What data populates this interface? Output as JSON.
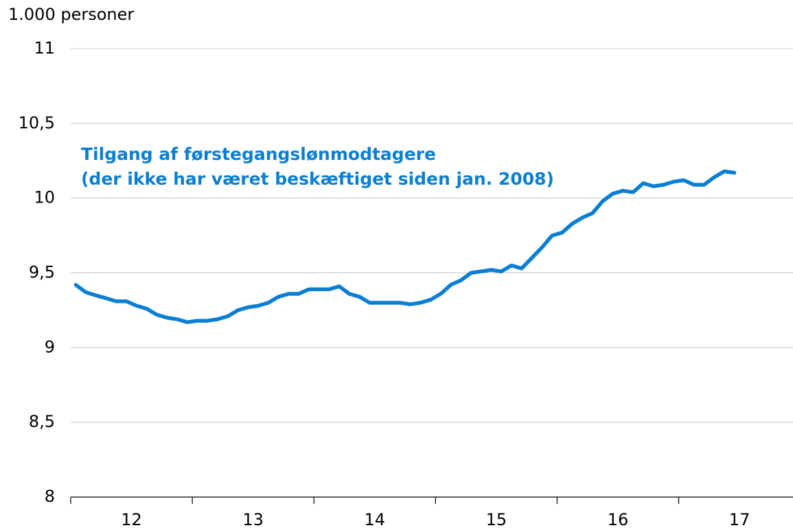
{
  "chart_data": {
    "type": "line",
    "unit_label": "1.000 personer",
    "annotation": [
      "Tilgang af førstegangslønmodtagere",
      "(der ikke har været beskæftiget siden jan. 2008)"
    ],
    "xlim": [
      2012,
      2017.94
    ],
    "xticks": [
      {
        "value": 2012.5,
        "label": "12"
      },
      {
        "value": 2013.5,
        "label": "13"
      },
      {
        "value": 2014.5,
        "label": "14"
      },
      {
        "value": 2015.5,
        "label": "15"
      },
      {
        "value": 2016.5,
        "label": "16"
      },
      {
        "value": 2017.5,
        "label": "17"
      }
    ],
    "ylim": [
      8,
      11
    ],
    "yticks": [
      8,
      {
        "value": 8.5,
        "label": "8,5"
      },
      9,
      {
        "value": 9.5,
        "label": "9,5"
      },
      10,
      {
        "value": 10.5,
        "label": "10,5"
      },
      11
    ],
    "grid": true,
    "x": [
      2012.042,
      2012.125,
      2012.208,
      2012.292,
      2012.375,
      2012.458,
      2012.542,
      2012.625,
      2012.708,
      2012.792,
      2012.875,
      2012.958,
      2013.042,
      2013.125,
      2013.208,
      2013.292,
      2013.375,
      2013.458,
      2013.542,
      2013.625,
      2013.708,
      2013.792,
      2013.875,
      2013.958,
      2014.042,
      2014.125,
      2014.208,
      2014.292,
      2014.375,
      2014.458,
      2014.542,
      2014.625,
      2014.708,
      2014.792,
      2014.875,
      2014.958,
      2015.042,
      2015.125,
      2015.208,
      2015.292,
      2015.375,
      2015.458,
      2015.542,
      2015.625,
      2015.708,
      2015.792,
      2015.875,
      2015.958,
      2016.042,
      2016.125,
      2016.208,
      2016.292,
      2016.375,
      2016.458,
      2016.542,
      2016.625,
      2016.708,
      2016.792,
      2016.875,
      2016.958,
      2017.042,
      2017.125,
      2017.208,
      2017.292,
      2017.375,
      2017.458
    ],
    "series": [
      {
        "color": "#0a7fd2",
        "values": [
          9.42,
          9.37,
          9.35,
          9.33,
          9.31,
          9.31,
          9.28,
          9.26,
          9.22,
          9.2,
          9.19,
          9.17,
          9.18,
          9.18,
          9.19,
          9.21,
          9.25,
          9.27,
          9.28,
          9.3,
          9.34,
          9.36,
          9.36,
          9.39,
          9.39,
          9.39,
          9.41,
          9.36,
          9.34,
          9.3,
          9.3,
          9.3,
          9.3,
          9.29,
          9.3,
          9.32,
          9.36,
          9.42,
          9.45,
          9.5,
          9.51,
          9.52,
          9.51,
          9.55,
          9.53,
          9.6,
          9.67,
          9.75,
          9.77,
          9.83,
          9.87,
          9.9,
          9.98,
          10.03,
          10.05,
          10.04,
          10.1,
          10.08,
          10.09,
          10.11,
          10.12,
          10.09,
          10.09,
          10.14,
          10.18,
          10.17
        ]
      }
    ]
  }
}
